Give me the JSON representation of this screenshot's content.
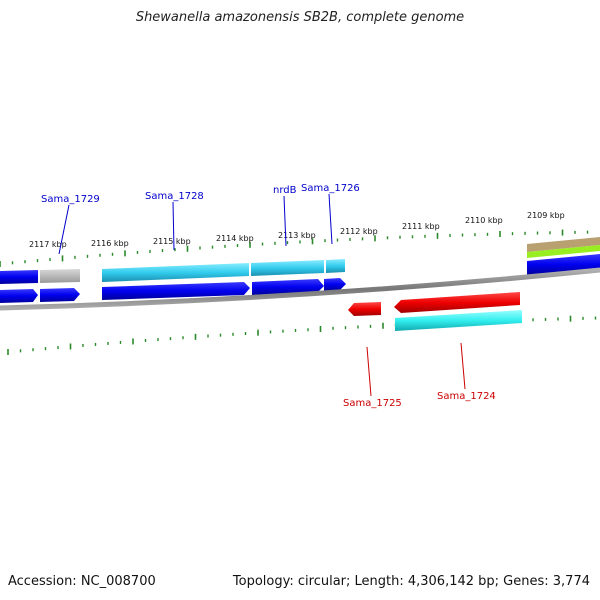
{
  "title": "Shewanella amazonensis SB2B, complete genome",
  "footer": {
    "accession": "Accession: NC_008700",
    "stats": "Topology: circular; Length: 4,306,142 bp; Genes: 3,774"
  },
  "colors": {
    "forward_gene": "#0000ee",
    "forward_cds": "#33ccee",
    "reverse_gene": "#ee0000",
    "reverse_cds": "#33eeee",
    "backbone": "#888888",
    "tick": "#2a8a2a",
    "label_forward": "#0000cc",
    "label_reverse": "#cc0000"
  },
  "axis_labels": [
    "2117 kbp",
    "2116 kbp",
    "2115 kbp",
    "2114 kbp",
    "2113 kbp",
    "2112 kbp",
    "2111 kbp",
    "2110 kbp",
    "2109 kbp"
  ],
  "gene_labels": {
    "forward": [
      "Sama_1729",
      "Sama_1728",
      "nrdB",
      "Sama_1726"
    ],
    "reverse": [
      "Sama_1725",
      "Sama_1724"
    ]
  }
}
